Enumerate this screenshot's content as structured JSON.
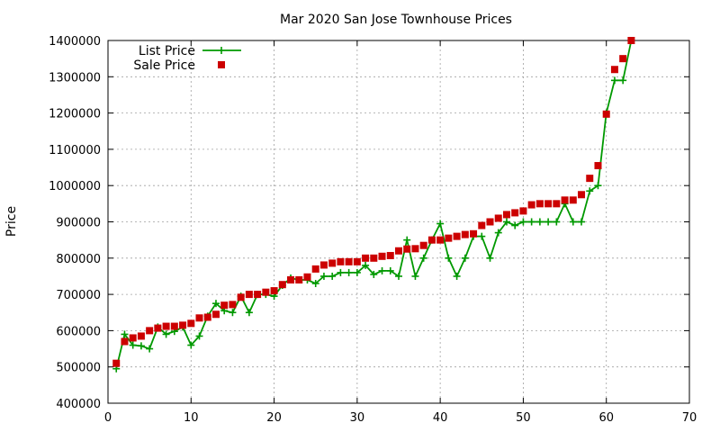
{
  "chart_data": {
    "type": "line",
    "title": "Mar 2020 San Jose Townhouse Prices",
    "xlabel": "",
    "ylabel": "Price",
    "xlim": [
      0,
      70
    ],
    "ylim": [
      400000,
      1400000
    ],
    "xticks": [
      0,
      10,
      20,
      30,
      40,
      50,
      60,
      70
    ],
    "yticks": [
      400000,
      500000,
      600000,
      700000,
      800000,
      900000,
      1000000,
      1100000,
      1200000,
      1300000,
      1400000
    ],
    "grid": true,
    "legend_position": "top-left",
    "x": [
      1,
      2,
      3,
      4,
      5,
      6,
      7,
      8,
      9,
      10,
      11,
      12,
      13,
      14,
      15,
      16,
      17,
      18,
      19,
      20,
      21,
      22,
      23,
      24,
      25,
      26,
      27,
      28,
      29,
      30,
      31,
      32,
      33,
      34,
      35,
      36,
      37,
      38,
      39,
      40,
      41,
      42,
      43,
      44,
      45,
      46,
      47,
      48,
      49,
      50,
      51,
      52,
      53,
      54,
      55,
      56,
      57,
      58,
      59,
      60,
      61,
      62,
      63
    ],
    "series": [
      {
        "name": "List Price",
        "style": "line+cross",
        "color": "#009900",
        "values": [
          495000,
          590000,
          560000,
          558000,
          550000,
          610000,
          590000,
          598000,
          610000,
          560000,
          585000,
          640000,
          675000,
          655000,
          650000,
          695000,
          650000,
          700000,
          700000,
          695000,
          725000,
          745000,
          740000,
          740000,
          730000,
          750000,
          750000,
          760000,
          760000,
          760000,
          780000,
          755000,
          765000,
          765000,
          750000,
          850000,
          750000,
          800000,
          850000,
          895000,
          800000,
          750000,
          800000,
          860000,
          860000,
          800000,
          870000,
          900000,
          890000,
          900000,
          900000,
          900000,
          900000,
          900000,
          950000,
          900000,
          900000,
          985000,
          1000000,
          1200000,
          1290000,
          1290000,
          1400000
        ]
      },
      {
        "name": "Sale Price",
        "style": "square",
        "color": "#cc0000",
        "values": [
          510000,
          570000,
          580000,
          585000,
          600000,
          607000,
          612000,
          612000,
          615000,
          620000,
          635000,
          637000,
          645000,
          670000,
          672000,
          692000,
          700000,
          700000,
          706000,
          710000,
          727000,
          740000,
          740000,
          748000,
          770000,
          781000,
          786000,
          790000,
          790000,
          790000,
          800000,
          800000,
          805000,
          807000,
          820000,
          825000,
          826000,
          835000,
          850000,
          850000,
          855000,
          860000,
          865000,
          867000,
          890000,
          900000,
          910000,
          920000,
          925000,
          930000,
          947000,
          950000,
          950000,
          950000,
          960000,
          960000,
          975000,
          1020000,
          1055000,
          1197000,
          1320000,
          1350000,
          1400000
        ]
      }
    ]
  }
}
